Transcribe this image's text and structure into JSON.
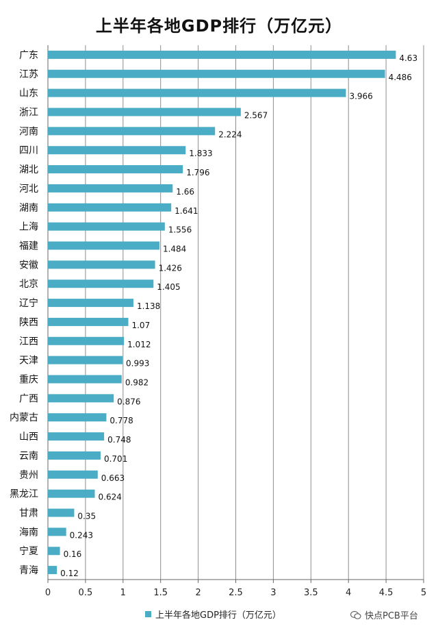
{
  "chart_data": {
    "type": "bar",
    "orientation": "horizontal",
    "title": "上半年各地GDP排行（万亿元）",
    "categories": [
      "广东",
      "江苏",
      "山东",
      "浙江",
      "河南",
      "四川",
      "湖北",
      "河北",
      "湖南",
      "上海",
      "福建",
      "安徽",
      "北京",
      "辽宁",
      "陕西",
      "江西",
      "天津",
      "重庆",
      "广西",
      "内蒙古",
      "山西",
      "云南",
      "贵州",
      "黑龙江",
      "甘肃",
      "海南",
      "宁夏",
      "青海"
    ],
    "series": [
      {
        "name": "上半年各地GDP排行（万亿元）",
        "values": [
          4.63,
          4.486,
          3.966,
          2.567,
          2.224,
          1.833,
          1.796,
          1.66,
          1.641,
          1.556,
          1.484,
          1.426,
          1.405,
          1.138,
          1.07,
          1.012,
          0.993,
          0.982,
          0.876,
          0.778,
          0.748,
          0.701,
          0.663,
          0.624,
          0.35,
          0.243,
          0.16,
          0.12
        ],
        "labels": [
          "4.63",
          "4.486",
          "3.966",
          "2.567",
          "2.224",
          "1.833",
          "1.796",
          "1.66",
          "1.641",
          "1.556",
          "1.484",
          "1.426",
          "1.405",
          "1.138",
          "1.07",
          "1.012",
          "0.993",
          "0.982",
          "0.876",
          "0.778",
          "0.748",
          "0.701",
          "0.663",
          "0.624",
          "0.35",
          "0.243",
          "0.16",
          "0.12"
        ],
        "color": "#4bacc6"
      }
    ],
    "xlim": [
      0,
      5
    ],
    "xticks": [
      "0",
      "0.5",
      "1",
      "1.5",
      "2",
      "2.5",
      "3",
      "3.5",
      "4",
      "4.5",
      "5"
    ],
    "grid": true,
    "legend": "bottom"
  },
  "legend": {
    "label": "上半年各地GDP排行（万亿元）"
  },
  "watermark": {
    "text": "快点PCB平台",
    "icon": "wechat-icon"
  },
  "colors": {
    "bar": "#4bacc6",
    "grid": "#8c8c8c"
  }
}
